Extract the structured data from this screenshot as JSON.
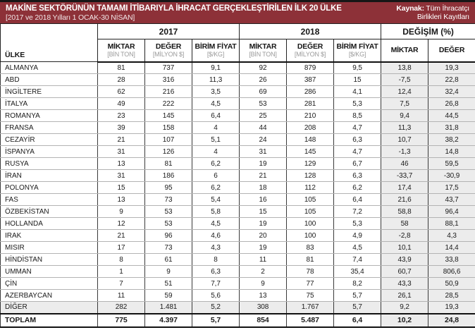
{
  "band": {
    "title": "MAKİNE SEKTÖRÜNÜN TAMAMI İTİBARIYLA İHRACAT GERÇEKLEŞTİRİLEN İLK 20 ÜLKE",
    "subtitle": "[2017 ve 2018 Yılları 1 OCAK-30 NİSAN]",
    "source_label": "Kaynak:",
    "source_text": " Tüm İhracatçı Birlikleri Kayıtları",
    "bg_color": "#8d3138",
    "text_color": "#ffffff"
  },
  "chart_data": {
    "type": "table",
    "title": "MAKİNE SEKTÖRÜNÜN TAMAMI İTİBARIYLA İHRACAT GERÇEKLEŞTİRİLEN İLK 20 ÜLKE",
    "subtitle": "[2017 ve 2018 Yılları 1 OCAK-30 NİSAN]",
    "source": "Kaynak: Tüm İhracatçı Birlikleri Kayıtları",
    "country_header": "ÜLKE",
    "column_groups": [
      {
        "label": "2017",
        "span": 3
      },
      {
        "label": "2018",
        "span": 3
      },
      {
        "label": "DEĞİŞİM (%)",
        "span": 2
      }
    ],
    "columns": [
      {
        "main": "MİKTAR",
        "sub": "[BİN TON]"
      },
      {
        "main": "DEĞER",
        "sub": "[MİLYON $]"
      },
      {
        "main": "BİRİM FİYAT",
        "sub": "[$/KG]"
      },
      {
        "main": "MİKTAR",
        "sub": "[BİN TON]"
      },
      {
        "main": "DEĞER",
        "sub": "[MİLYON $]"
      },
      {
        "main": "BİRİM FİYAT",
        "sub": "[$/KG]"
      },
      {
        "main": "MİKTAR",
        "sub": ""
      },
      {
        "main": "DEĞER",
        "sub": ""
      }
    ],
    "rows": [
      {
        "country": "ALMANYA",
        "values": [
          "81",
          "737",
          "9,1",
          "92",
          "879",
          "9,5",
          "13,8",
          "19,3"
        ],
        "shaded": false
      },
      {
        "country": "ABD",
        "values": [
          "28",
          "316",
          "11,3",
          "26",
          "387",
          "15",
          "-7,5",
          "22,8"
        ],
        "shaded": false
      },
      {
        "country": "İNGİLTERE",
        "values": [
          "62",
          "216",
          "3,5",
          "69",
          "286",
          "4,1",
          "12,4",
          "32,4"
        ],
        "shaded": false
      },
      {
        "country": "İTALYA",
        "values": [
          "49",
          "222",
          "4,5",
          "53",
          "281",
          "5,3",
          "7,5",
          "26,8"
        ],
        "shaded": false
      },
      {
        "country": "ROMANYA",
        "values": [
          "23",
          "145",
          "6,4",
          "25",
          "210",
          "8,5",
          "9,4",
          "44,5"
        ],
        "shaded": false
      },
      {
        "country": "FRANSA",
        "values": [
          "39",
          "158",
          "4",
          "44",
          "208",
          "4,7",
          "11,3",
          "31,8"
        ],
        "shaded": false
      },
      {
        "country": "CEZAYİR",
        "values": [
          "21",
          "107",
          "5,1",
          "24",
          "148",
          "6,3",
          "10,7",
          "38,2"
        ],
        "shaded": false
      },
      {
        "country": "İSPANYA",
        "values": [
          "31",
          "126",
          "4",
          "31",
          "145",
          "4,7",
          "-1,3",
          "14,8"
        ],
        "shaded": false
      },
      {
        "country": "RUSYA",
        "values": [
          "13",
          "81",
          "6,2",
          "19",
          "129",
          "6,7",
          "46",
          "59,5"
        ],
        "shaded": false
      },
      {
        "country": "İRAN",
        "values": [
          "31",
          "186",
          "6",
          "21",
          "128",
          "6,3",
          "-33,7",
          "-30,9"
        ],
        "shaded": false
      },
      {
        "country": "POLONYA",
        "values": [
          "15",
          "95",
          "6,2",
          "18",
          "112",
          "6,2",
          "17,4",
          "17,5"
        ],
        "shaded": false
      },
      {
        "country": "FAS",
        "values": [
          "13",
          "73",
          "5,4",
          "16",
          "105",
          "6,4",
          "21,6",
          "43,7"
        ],
        "shaded": false
      },
      {
        "country": "ÖZBEKİSTAN",
        "values": [
          "9",
          "53",
          "5,8",
          "15",
          "105",
          "7,2",
          "58,8",
          "96,4"
        ],
        "shaded": false
      },
      {
        "country": "HOLLANDA",
        "values": [
          "12",
          "53",
          "4,5",
          "19",
          "100",
          "5,3",
          "58",
          "88,1"
        ],
        "shaded": false
      },
      {
        "country": "IRAK",
        "values": [
          "21",
          "96",
          "4,6",
          "20",
          "100",
          "4,9",
          "-2,8",
          "4,3"
        ],
        "shaded": false
      },
      {
        "country": "MISIR",
        "values": [
          "17",
          "73",
          "4,3",
          "19",
          "83",
          "4,5",
          "10,1",
          "14,4"
        ],
        "shaded": false
      },
      {
        "country": "HİNDİSTAN",
        "values": [
          "8",
          "61",
          "8",
          "11",
          "81",
          "7,4",
          "43,9",
          "33,8"
        ],
        "shaded": false
      },
      {
        "country": "UMMAN",
        "values": [
          "1",
          "9",
          "6,3",
          "2",
          "78",
          "35,4",
          "60,7",
          "806,6"
        ],
        "shaded": false
      },
      {
        "country": "ÇİN",
        "values": [
          "7",
          "51",
          "7,7",
          "9",
          "77",
          "8,2",
          "43,3",
          "50,9"
        ],
        "shaded": false
      },
      {
        "country": "AZERBAYCAN",
        "values": [
          "11",
          "59",
          "5,6",
          "13",
          "75",
          "5,7",
          "26,1",
          "28,5"
        ],
        "shaded": false
      },
      {
        "country": "DİĞER",
        "values": [
          "282",
          "1.481",
          "5,2",
          "308",
          "1.767",
          "5,7",
          "9,2",
          "19,3"
        ],
        "shaded": true
      }
    ],
    "total_row": {
      "country": "TOPLAM",
      "values": [
        "775",
        "4.397",
        "5,7",
        "854",
        "5.487",
        "6,4",
        "10,2",
        "24,8"
      ]
    }
  },
  "colors": {
    "band_bg": "#8d3138",
    "band_top_line": "#161616",
    "changed_col_bg": "#ececec",
    "row_line": "#b3b3b3",
    "cell_border": "#222222",
    "header_sub_gray": "#9a9a9a"
  }
}
